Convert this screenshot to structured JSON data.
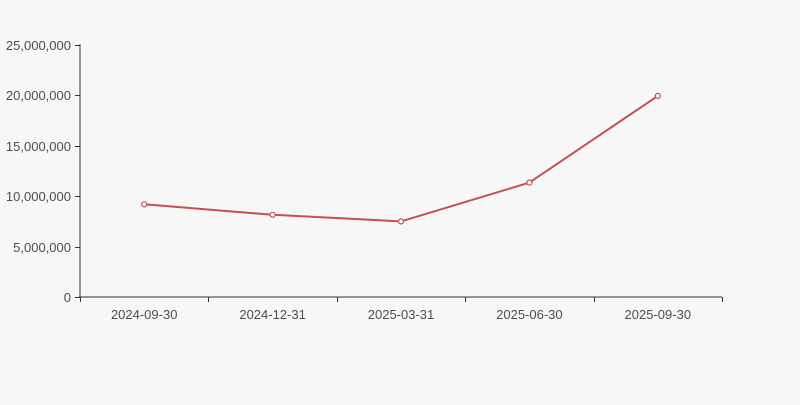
{
  "chart_data": {
    "type": "line",
    "title": "",
    "xlabel": "",
    "ylabel": "",
    "categories": [
      "2024-09-30",
      "2024-12-31",
      "2025-03-31",
      "2025-06-30",
      "2025-09-30"
    ],
    "values": [
      9200000,
      8150000,
      7500000,
      11350000,
      19950000
    ],
    "ylim": [
      0,
      25000000
    ],
    "y_ticks": [
      0,
      5000000,
      10000000,
      15000000,
      20000000,
      25000000
    ],
    "y_tick_labels": [
      "0",
      "5,000,000",
      "10,000,000",
      "15,000,000",
      "20,000,000",
      "25,000,000"
    ],
    "grid": false,
    "legend": false,
    "marker": "open-circle",
    "colors": {
      "background": "#f7f7f7",
      "line": "#c5514f",
      "marker_fill": "#ffffff",
      "axis": "#333333",
      "tick_label": "#4d4d4d"
    }
  }
}
